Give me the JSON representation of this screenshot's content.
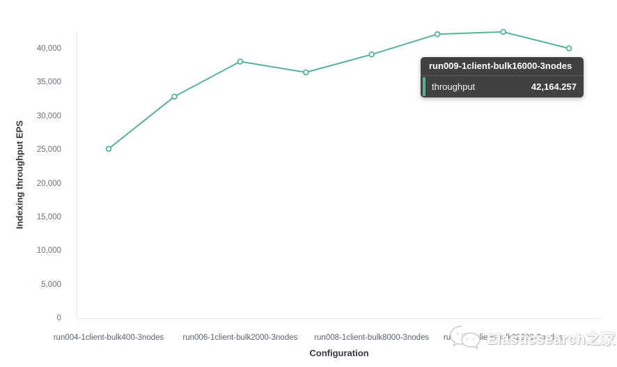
{
  "chart_data": {
    "type": "line",
    "title": "",
    "xlabel": "Configuration",
    "ylabel": "Indexing throughput EPS",
    "legend": "none",
    "grid": false,
    "marker": "hollow-circle",
    "num_points": 8,
    "series": [
      {
        "name": "throughput",
        "color": "#54B399",
        "values": [
          25150,
          32900,
          38100,
          36500,
          39150,
          42164.257,
          42500,
          40050
        ]
      }
    ],
    "x_ticks": {
      "point_indices": [
        0,
        2,
        4,
        6
      ],
      "labels": [
        "run004-1client-bulk400-3nodes",
        "run006-1client-bulk2000-3nodes",
        "run008-1client-bulk8000-3nodes",
        "run010-1client-bulk32000-3nodes"
      ]
    },
    "y_ticks": {
      "values": [
        0,
        5000,
        10000,
        15000,
        20000,
        25000,
        30000,
        35000,
        40000
      ],
      "labels": [
        "0",
        "5,000",
        "10,000",
        "15,000",
        "20,000",
        "25,000",
        "30,000",
        "35,000",
        "40,000"
      ]
    },
    "ylim": [
      0,
      43100
    ]
  },
  "tooltip": {
    "title": "run009-1client-bulk16000-3nodes",
    "rows": [
      {
        "label": "throughput",
        "value": "42,164.257"
      }
    ],
    "accent_color": "#54B399"
  },
  "watermark": {
    "text": "Elasticsearch之家"
  },
  "colors": {
    "series": "#54B399",
    "axis_line": "#e4e6ea",
    "tick_text": "#69707d",
    "axis_title_text": "#343741",
    "tooltip_bg": "#414141",
    "tooltip_divider": "#5a5a5a",
    "watermark_gray": "#c9ccd1"
  }
}
